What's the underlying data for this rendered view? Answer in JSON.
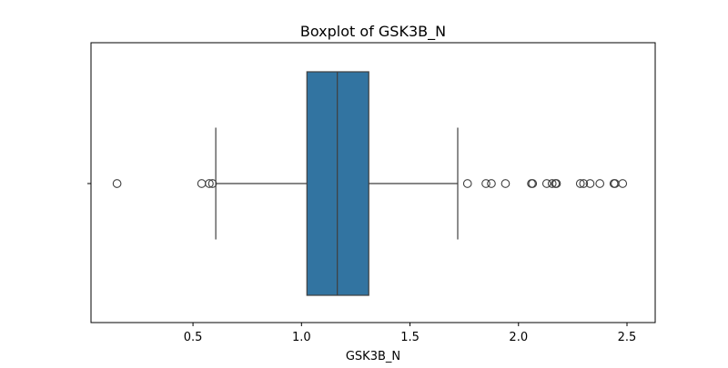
{
  "chart_data": {
    "type": "boxplot",
    "title": "Boxplot of GSK3B_N",
    "xlabel": "GSK3B_N",
    "ylabel": "",
    "orientation": "horizontal",
    "xlim": [
      0.03,
      2.63
    ],
    "xticks": [
      0.5,
      1.0,
      1.5,
      2.0,
      2.5
    ],
    "xtick_labels": [
      "0.5",
      "1.0",
      "1.5",
      "2.0",
      "2.5"
    ],
    "grid": false,
    "box": {
      "whisker_low": 0.605,
      "q1": 1.025,
      "median": 1.165,
      "q3": 1.31,
      "whisker_high": 1.72
    },
    "outliers": [
      0.15,
      0.54,
      0.575,
      0.59,
      1.765,
      1.85,
      1.875,
      1.94,
      2.06,
      2.065,
      2.13,
      2.155,
      2.17,
      2.175,
      2.285,
      2.3,
      2.33,
      2.375,
      2.44,
      2.445,
      2.48
    ],
    "colors": {
      "box_fill": "#3274a1",
      "line": "#3f3f3f",
      "axes": "#000000",
      "background": "#ffffff"
    }
  }
}
